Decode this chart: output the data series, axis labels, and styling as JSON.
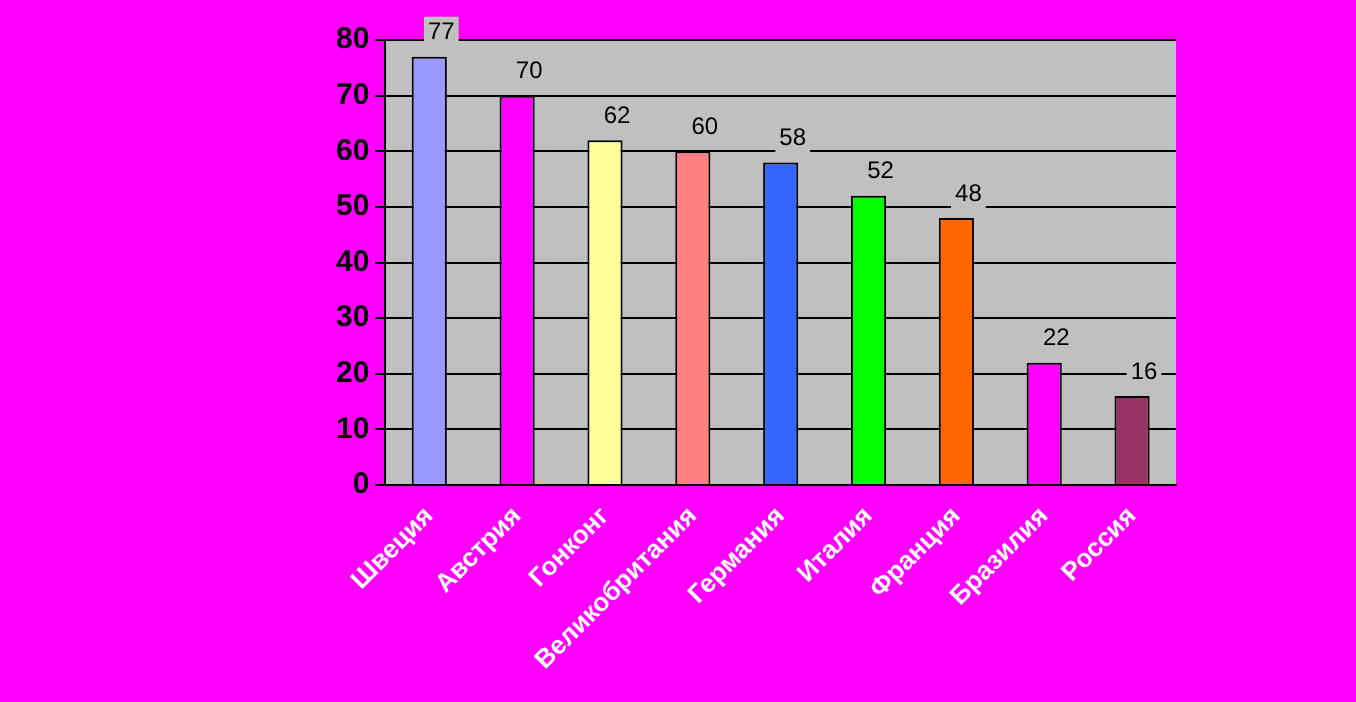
{
  "chart_data": {
    "type": "bar",
    "categories": [
      "Швеция",
      "Австрия",
      "Гонконг",
      "Великобритания",
      "Германия",
      "Италия",
      "Франция",
      "Бразилия",
      "Россия"
    ],
    "values": [
      77,
      70,
      62,
      60,
      58,
      52,
      48,
      22,
      16
    ],
    "colors": [
      "#9999ff",
      "#ff00ff",
      "#ffff99",
      "#ff8080",
      "#3366ff",
      "#00ff00",
      "#ff6600",
      "#ff00ff",
      "#993366"
    ],
    "ylim": [
      0,
      80
    ],
    "yticks": [
      0,
      10,
      20,
      30,
      40,
      50,
      60,
      70,
      80
    ],
    "grid": "y",
    "data_labels": true
  }
}
